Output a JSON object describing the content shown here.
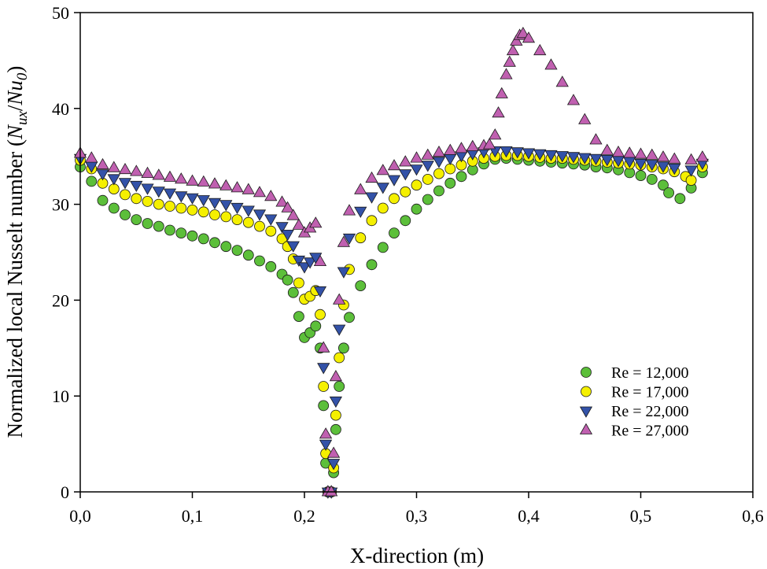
{
  "chart_data": {
    "type": "scatter",
    "xlabel": "X-direction (m)",
    "ylabel_prefix": "Normalized local Nusselt number (",
    "ylabel_num": "N",
    "ylabel_num_sub": "ux",
    "ylabel_slash": "/",
    "ylabel_den": "Nu",
    "ylabel_den_sub": "0",
    "ylabel_suffix": ")",
    "xlim": [
      0.0,
      0.6
    ],
    "ylim": [
      0,
      50
    ],
    "xticks": [
      0.0,
      0.1,
      0.2,
      0.3,
      0.4,
      0.5,
      0.6
    ],
    "xtick_labels": [
      "0,0",
      "0,1",
      "0,2",
      "0,3",
      "0,4",
      "0,5",
      "0,6"
    ],
    "yticks": [
      0,
      10,
      20,
      30,
      40,
      50
    ],
    "ytick_labels": [
      "0",
      "10",
      "20",
      "30",
      "40",
      "50"
    ],
    "grid": false,
    "legend_position": "bottom-right",
    "series": [
      {
        "name": "Re = 12,000",
        "marker": "circle",
        "color": "#5cbf3a",
        "points": [
          [
            0.0,
            33.9
          ],
          [
            0.01,
            32.4
          ],
          [
            0.02,
            30.4
          ],
          [
            0.03,
            29.6
          ],
          [
            0.04,
            28.9
          ],
          [
            0.05,
            28.4
          ],
          [
            0.06,
            28.0
          ],
          [
            0.07,
            27.7
          ],
          [
            0.08,
            27.3
          ],
          [
            0.09,
            27.0
          ],
          [
            0.1,
            26.7
          ],
          [
            0.11,
            26.4
          ],
          [
            0.12,
            26.0
          ],
          [
            0.13,
            25.6
          ],
          [
            0.14,
            25.2
          ],
          [
            0.15,
            24.7
          ],
          [
            0.16,
            24.1
          ],
          [
            0.17,
            23.5
          ],
          [
            0.18,
            22.7
          ],
          [
            0.185,
            22.1
          ],
          [
            0.19,
            20.8
          ],
          [
            0.195,
            18.3
          ],
          [
            0.2,
            16.1
          ],
          [
            0.205,
            16.6
          ],
          [
            0.21,
            17.3
          ],
          [
            0.214,
            15.0
          ],
          [
            0.217,
            9.0
          ],
          [
            0.219,
            3.0
          ],
          [
            0.221,
            0.0
          ],
          [
            0.224,
            0.0
          ],
          [
            0.226,
            2.0
          ],
          [
            0.228,
            6.5
          ],
          [
            0.231,
            11.0
          ],
          [
            0.235,
            15.0
          ],
          [
            0.24,
            18.2
          ],
          [
            0.25,
            21.5
          ],
          [
            0.26,
            23.7
          ],
          [
            0.27,
            25.5
          ],
          [
            0.28,
            27.0
          ],
          [
            0.29,
            28.3
          ],
          [
            0.3,
            29.5
          ],
          [
            0.31,
            30.5
          ],
          [
            0.32,
            31.4
          ],
          [
            0.33,
            32.2
          ],
          [
            0.34,
            32.9
          ],
          [
            0.35,
            33.6
          ],
          [
            0.36,
            34.2
          ],
          [
            0.37,
            34.7
          ],
          [
            0.38,
            34.8
          ],
          [
            0.39,
            34.7
          ],
          [
            0.4,
            34.6
          ],
          [
            0.41,
            34.5
          ],
          [
            0.42,
            34.4
          ],
          [
            0.43,
            34.3
          ],
          [
            0.44,
            34.2
          ],
          [
            0.45,
            34.1
          ],
          [
            0.46,
            33.9
          ],
          [
            0.47,
            33.8
          ],
          [
            0.48,
            33.6
          ],
          [
            0.49,
            33.3
          ],
          [
            0.5,
            33.0
          ],
          [
            0.51,
            32.6
          ],
          [
            0.52,
            32.0
          ],
          [
            0.525,
            31.2
          ],
          [
            0.535,
            30.6
          ],
          [
            0.545,
            31.7
          ],
          [
            0.555,
            33.3
          ]
        ]
      },
      {
        "name": "Re = 17,000",
        "marker": "circle",
        "color": "#f5f000",
        "points": [
          [
            0.0,
            34.6
          ],
          [
            0.01,
            33.7
          ],
          [
            0.02,
            32.2
          ],
          [
            0.03,
            31.6
          ],
          [
            0.04,
            31.0
          ],
          [
            0.05,
            30.6
          ],
          [
            0.06,
            30.3
          ],
          [
            0.07,
            30.0
          ],
          [
            0.08,
            29.8
          ],
          [
            0.09,
            29.6
          ],
          [
            0.1,
            29.4
          ],
          [
            0.11,
            29.2
          ],
          [
            0.12,
            28.9
          ],
          [
            0.13,
            28.7
          ],
          [
            0.14,
            28.4
          ],
          [
            0.15,
            28.1
          ],
          [
            0.16,
            27.7
          ],
          [
            0.17,
            27.2
          ],
          [
            0.18,
            26.4
          ],
          [
            0.185,
            25.6
          ],
          [
            0.19,
            24.3
          ],
          [
            0.195,
            21.8
          ],
          [
            0.2,
            20.1
          ],
          [
            0.205,
            20.4
          ],
          [
            0.21,
            21.0
          ],
          [
            0.214,
            18.5
          ],
          [
            0.217,
            11.0
          ],
          [
            0.219,
            4.0
          ],
          [
            0.221,
            0.0
          ],
          [
            0.224,
            0.0
          ],
          [
            0.226,
            2.5
          ],
          [
            0.228,
            8.0
          ],
          [
            0.231,
            14.0
          ],
          [
            0.235,
            19.5
          ],
          [
            0.24,
            23.2
          ],
          [
            0.25,
            26.5
          ],
          [
            0.26,
            28.3
          ],
          [
            0.27,
            29.6
          ],
          [
            0.28,
            30.6
          ],
          [
            0.29,
            31.3
          ],
          [
            0.3,
            32.0
          ],
          [
            0.31,
            32.6
          ],
          [
            0.32,
            33.2
          ],
          [
            0.33,
            33.7
          ],
          [
            0.34,
            34.1
          ],
          [
            0.35,
            34.5
          ],
          [
            0.36,
            34.8
          ],
          [
            0.37,
            35.0
          ],
          [
            0.38,
            35.1
          ],
          [
            0.39,
            35.1
          ],
          [
            0.4,
            35.0
          ],
          [
            0.41,
            34.9
          ],
          [
            0.42,
            34.8
          ],
          [
            0.43,
            34.8
          ],
          [
            0.44,
            34.7
          ],
          [
            0.45,
            34.6
          ],
          [
            0.46,
            34.5
          ],
          [
            0.47,
            34.4
          ],
          [
            0.48,
            34.3
          ],
          [
            0.49,
            34.2
          ],
          [
            0.5,
            34.1
          ],
          [
            0.51,
            33.9
          ],
          [
            0.52,
            33.7
          ],
          [
            0.53,
            33.4
          ],
          [
            0.54,
            32.9
          ],
          [
            0.545,
            32.5
          ],
          [
            0.555,
            33.9
          ]
        ]
      },
      {
        "name": "Re = 22,000",
        "marker": "triangle-down",
        "color": "#3352a8",
        "points": [
          [
            0.0,
            34.8
          ],
          [
            0.01,
            34.0
          ],
          [
            0.02,
            33.2
          ],
          [
            0.03,
            32.7
          ],
          [
            0.04,
            32.3
          ],
          [
            0.05,
            32.0
          ],
          [
            0.06,
            31.7
          ],
          [
            0.07,
            31.4
          ],
          [
            0.08,
            31.2
          ],
          [
            0.09,
            30.9
          ],
          [
            0.1,
            30.7
          ],
          [
            0.11,
            30.5
          ],
          [
            0.12,
            30.2
          ],
          [
            0.13,
            30.0
          ],
          [
            0.14,
            29.7
          ],
          [
            0.15,
            29.4
          ],
          [
            0.16,
            29.0
          ],
          [
            0.17,
            28.5
          ],
          [
            0.18,
            27.7
          ],
          [
            0.185,
            26.9
          ],
          [
            0.19,
            25.7
          ],
          [
            0.195,
            24.2
          ],
          [
            0.2,
            23.5
          ],
          [
            0.205,
            24.0
          ],
          [
            0.21,
            24.5
          ],
          [
            0.214,
            21.0
          ],
          [
            0.217,
            13.0
          ],
          [
            0.219,
            5.0
          ],
          [
            0.221,
            0.0
          ],
          [
            0.224,
            0.0
          ],
          [
            0.226,
            3.0
          ],
          [
            0.228,
            9.5
          ],
          [
            0.231,
            17.0
          ],
          [
            0.235,
            23.0
          ],
          [
            0.24,
            26.5
          ],
          [
            0.25,
            29.3
          ],
          [
            0.26,
            30.8
          ],
          [
            0.27,
            31.8
          ],
          [
            0.28,
            32.6
          ],
          [
            0.29,
            33.2
          ],
          [
            0.3,
            33.7
          ],
          [
            0.31,
            34.1
          ],
          [
            0.32,
            34.5
          ],
          [
            0.33,
            34.8
          ],
          [
            0.34,
            35.1
          ],
          [
            0.35,
            35.3
          ],
          [
            0.36,
            35.5
          ],
          [
            0.37,
            35.6
          ],
          [
            0.38,
            35.6
          ],
          [
            0.39,
            35.5
          ],
          [
            0.4,
            35.4
          ],
          [
            0.41,
            35.3
          ],
          [
            0.42,
            35.2
          ],
          [
            0.43,
            35.1
          ],
          [
            0.44,
            35.0
          ],
          [
            0.45,
            34.9
          ],
          [
            0.46,
            34.8
          ],
          [
            0.47,
            34.7
          ],
          [
            0.48,
            34.6
          ],
          [
            0.49,
            34.5
          ],
          [
            0.5,
            34.3
          ],
          [
            0.51,
            34.2
          ],
          [
            0.52,
            34.0
          ],
          [
            0.53,
            33.8
          ],
          [
            0.545,
            33.6
          ],
          [
            0.555,
            34.3
          ]
        ]
      },
      {
        "name": "Re = 27,000",
        "marker": "triangle-up",
        "color": "#c060b0",
        "points": [
          [
            0.0,
            35.3
          ],
          [
            0.01,
            34.8
          ],
          [
            0.02,
            34.1
          ],
          [
            0.03,
            33.8
          ],
          [
            0.04,
            33.6
          ],
          [
            0.05,
            33.4
          ],
          [
            0.06,
            33.2
          ],
          [
            0.07,
            33.0
          ],
          [
            0.08,
            32.8
          ],
          [
            0.09,
            32.6
          ],
          [
            0.1,
            32.4
          ],
          [
            0.11,
            32.3
          ],
          [
            0.12,
            32.1
          ],
          [
            0.13,
            31.9
          ],
          [
            0.14,
            31.7
          ],
          [
            0.15,
            31.5
          ],
          [
            0.16,
            31.2
          ],
          [
            0.17,
            30.8
          ],
          [
            0.18,
            30.2
          ],
          [
            0.185,
            29.6
          ],
          [
            0.19,
            28.8
          ],
          [
            0.195,
            27.8
          ],
          [
            0.2,
            27.0
          ],
          [
            0.205,
            27.5
          ],
          [
            0.21,
            28.0
          ],
          [
            0.214,
            24.0
          ],
          [
            0.217,
            15.0
          ],
          [
            0.219,
            6.0
          ],
          [
            0.221,
            0.0
          ],
          [
            0.224,
            0.0
          ],
          [
            0.226,
            4.0
          ],
          [
            0.228,
            12.0
          ],
          [
            0.231,
            20.0
          ],
          [
            0.235,
            26.0
          ],
          [
            0.24,
            29.3
          ],
          [
            0.25,
            31.5
          ],
          [
            0.26,
            32.7
          ],
          [
            0.27,
            33.5
          ],
          [
            0.28,
            34.0
          ],
          [
            0.29,
            34.4
          ],
          [
            0.3,
            34.8
          ],
          [
            0.31,
            35.1
          ],
          [
            0.32,
            35.4
          ],
          [
            0.33,
            35.6
          ],
          [
            0.34,
            35.8
          ],
          [
            0.35,
            36.0
          ],
          [
            0.36,
            36.1
          ],
          [
            0.365,
            36.2
          ],
          [
            0.37,
            37.2
          ],
          [
            0.373,
            39.5
          ],
          [
            0.376,
            41.5
          ],
          [
            0.38,
            43.5
          ],
          [
            0.383,
            44.8
          ],
          [
            0.386,
            46.0
          ],
          [
            0.389,
            47.0
          ],
          [
            0.392,
            47.6
          ],
          [
            0.395,
            47.8
          ],
          [
            0.4,
            47.3
          ],
          [
            0.41,
            46.0
          ],
          [
            0.42,
            44.5
          ],
          [
            0.43,
            42.7
          ],
          [
            0.44,
            40.8
          ],
          [
            0.45,
            38.8
          ],
          [
            0.46,
            36.7
          ],
          [
            0.47,
            35.6
          ],
          [
            0.48,
            35.4
          ],
          [
            0.49,
            35.3
          ],
          [
            0.5,
            35.2
          ],
          [
            0.51,
            35.1
          ],
          [
            0.52,
            34.9
          ],
          [
            0.53,
            34.7
          ],
          [
            0.545,
            34.6
          ],
          [
            0.555,
            34.9
          ]
        ]
      }
    ]
  }
}
